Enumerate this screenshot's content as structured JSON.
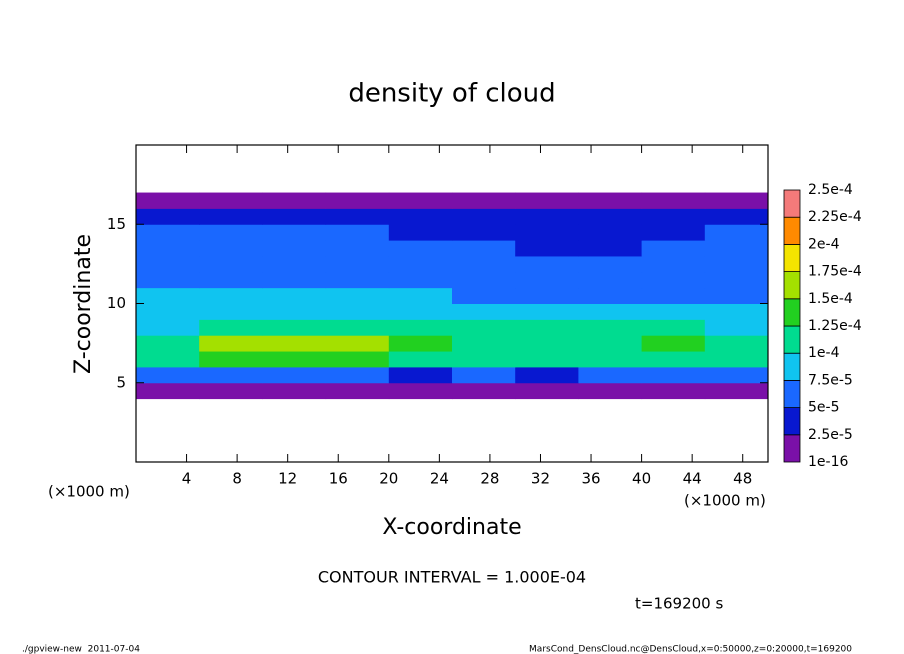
{
  "chart_data": {
    "type": "contour",
    "title": "density of cloud",
    "x_label": "X-coordinate",
    "y_label": "Z-coordinate",
    "x_unit": "(×1000 m)",
    "y_unit": "(×1000 m)",
    "xlim": [
      0,
      50
    ],
    "ylim": [
      0,
      20
    ],
    "xticks": [
      4,
      8,
      12,
      16,
      20,
      24,
      28,
      32,
      36,
      40,
      44,
      48
    ],
    "yticks": [
      5,
      10,
      15
    ],
    "x": [
      2.5,
      7.5,
      12.5,
      17.5,
      22.5,
      27.5,
      32.5,
      37.5,
      42.5,
      47.5
    ],
    "y": [
      4.5,
      5.5,
      6.5,
      7.5,
      8.5,
      9.5,
      10.5,
      11.5,
      12.5,
      13.5,
      14.5,
      15.5,
      16.5
    ],
    "values": [
      [
        1.5e-05,
        1.5e-05,
        1.5e-05,
        1.5e-05,
        1.5e-05,
        1.5e-05,
        1.5e-05,
        1.5e-05,
        1.5e-05,
        1.5e-05
      ],
      [
        5e-05,
        6e-05,
        6e-05,
        5e-05,
        4e-05,
        5e-05,
        4e-05,
        5e-05,
        6e-05,
        6e-05
      ],
      [
        0.00011,
        0.00013,
        0.000135,
        0.00013,
        0.00012,
        0.000115,
        0.00011,
        0.000115,
        0.00012,
        0.000115
      ],
      [
        0.00011,
        0.00015,
        0.000155,
        0.000155,
        0.00013,
        0.00012,
        0.000115,
        0.00012,
        0.000125,
        0.00012
      ],
      [
        9e-05,
        0.000105,
        0.00011,
        0.00011,
        0.000105,
        0.000105,
        0.0001,
        0.000105,
        0.0001,
        9.5e-05
      ],
      [
        8e-05,
        9e-05,
        9e-05,
        8.5e-05,
        9e-05,
        8.5e-05,
        8e-05,
        8e-05,
        8e-05,
        8e-05
      ],
      [
        7.5e-05,
        8e-05,
        8e-05,
        7.5e-05,
        7.5e-05,
        7e-05,
        7e-05,
        7e-05,
        7e-05,
        7e-05
      ],
      [
        6.5e-05,
        7e-05,
        7e-05,
        6.5e-05,
        6.5e-05,
        6e-05,
        6e-05,
        6.5e-05,
        6e-05,
        6e-05
      ],
      [
        6e-05,
        6e-05,
        6e-05,
        6e-05,
        5.5e-05,
        5.5e-05,
        5.5e-05,
        5.5e-05,
        5.5e-05,
        5.5e-05
      ],
      [
        5.5e-05,
        5.5e-05,
        5.5e-05,
        5.5e-05,
        5e-05,
        5e-05,
        4.5e-05,
        4.5e-05,
        5e-05,
        5.5e-05
      ],
      [
        5e-05,
        5e-05,
        5e-05,
        5e-05,
        4.5e-05,
        4e-05,
        3.5e-05,
        4e-05,
        4.5e-05,
        5e-05
      ],
      [
        3e-05,
        3e-05,
        3e-05,
        3e-05,
        3e-05,
        3e-05,
        3e-05,
        3e-05,
        3e-05,
        3e-05
      ],
      [
        1e-05,
        1e-05,
        1e-05,
        1e-05,
        1e-05,
        1e-05,
        1e-05,
        1e-05,
        1e-05,
        1e-05
      ]
    ],
    "levels": [
      {
        "value": 1e-16,
        "label": "1e-16"
      },
      {
        "value": 2.5e-05,
        "label": "2.5e-5"
      },
      {
        "value": 5e-05,
        "label": "5e-5"
      },
      {
        "value": 7.5e-05,
        "label": "7.5e-5"
      },
      {
        "value": 0.0001,
        "label": "1e-4"
      },
      {
        "value": 0.000125,
        "label": "1.25e-4"
      },
      {
        "value": 0.00015,
        "label": "1.5e-4"
      },
      {
        "value": 0.000175,
        "label": "1.75e-4"
      },
      {
        "value": 0.0002,
        "label": "2e-4"
      },
      {
        "value": 0.000225,
        "label": "2.25e-4"
      },
      {
        "value": 0.00025,
        "label": "2.5e-4"
      }
    ],
    "colors": [
      "#7a10a8",
      "#0818d0",
      "#1a68ff",
      "#10c4f0",
      "#00dc90",
      "#22d020",
      "#a4e000",
      "#f4e400",
      "#ff8a00",
      "#f47a7a"
    ],
    "annotations": [
      "CONTOUR INTERVAL = 1.000E-04",
      "t=169200 s"
    ],
    "footer_left": "./gpview-new  2011-07-04",
    "footer_right": "MarsCond_DensCloud.nc@DensCloud,x=0:50000,z=0:20000,t=169200"
  }
}
